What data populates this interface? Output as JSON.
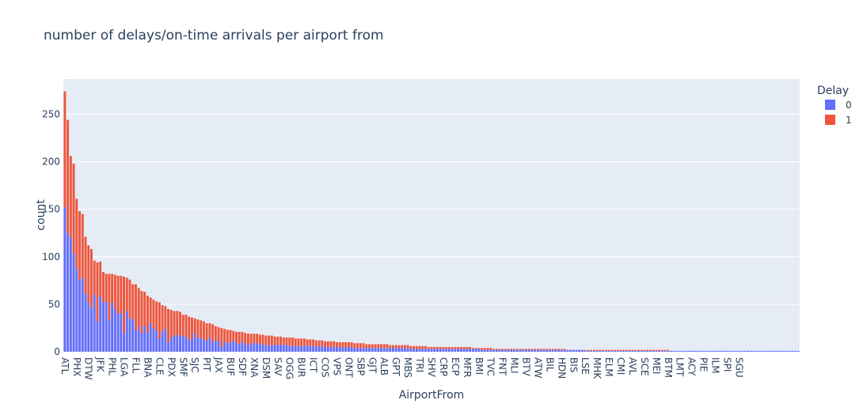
{
  "chart_data": {
    "type": "bar",
    "barmode": "stack",
    "title": "number of delays/on-time arrivals per airport from",
    "xlabel": "AirportFrom",
    "ylabel": "count",
    "ylim": [
      0,
      287
    ],
    "yticks": [
      0,
      50,
      100,
      150,
      200,
      250
    ],
    "grid": true,
    "legend_title": "Delay",
    "legend_position": "top-right",
    "tick_labels": [
      "ATL",
      "PHX",
      "DTW",
      "JFK",
      "PHL",
      "LGA",
      "FLL",
      "BNA",
      "CLE",
      "PDX",
      "SMF",
      "SJC",
      "PIT",
      "JAX",
      "BUF",
      "SDF",
      "XNA",
      "DSM",
      "SAV",
      "OGG",
      "BUR",
      "ICT",
      "COS",
      "VPS",
      "ONT",
      "SBP",
      "GJT",
      "ALB",
      "GPT",
      "MBS",
      "TRI",
      "SHV",
      "CRP",
      "ECP",
      "MFR",
      "BMI",
      "TVC",
      "FNT",
      "MLI",
      "BTV",
      "ATW",
      "BIL",
      "HDN",
      "BIS",
      "LSE",
      "MHK",
      "ELM",
      "CMI",
      "AVL",
      "SCE",
      "MEI",
      "BTM",
      "LMT",
      "ACY",
      "PIE",
      "ILM",
      "SPI",
      "SGU"
    ],
    "series": [
      {
        "name": "0",
        "color": "#636efa",
        "values": [
          152,
          125,
          120,
          103,
          88,
          75,
          78,
          61,
          52,
          46,
          60,
          32,
          58,
          53,
          52,
          33,
          52,
          45,
          40,
          41,
          20,
          43,
          35,
          34,
          22,
          27,
          20,
          27,
          20,
          30,
          25,
          22,
          14,
          21,
          24,
          10,
          15,
          17,
          18,
          16,
          17,
          16,
          12,
          14,
          20,
          15,
          14,
          13,
          12,
          15,
          10,
          12,
          12,
          5,
          10,
          9,
          10,
          12,
          9,
          8,
          11,
          8,
          7,
          9,
          9,
          9,
          8,
          8,
          7,
          6,
          8,
          7,
          7,
          8,
          7,
          7,
          6,
          6,
          7,
          5,
          6,
          6,
          7,
          6,
          6,
          5,
          6,
          6,
          5,
          5,
          5,
          5,
          5,
          5,
          5,
          4,
          5,
          5,
          4,
          4,
          4,
          4,
          4,
          4,
          4,
          4,
          4,
          4,
          4,
          4,
          4,
          4,
          4,
          4,
          4,
          4,
          4,
          3,
          3,
          3,
          3,
          3,
          3,
          3,
          3,
          3,
          3,
          3,
          3,
          3,
          3,
          3,
          3,
          3,
          3,
          3,
          3,
          3,
          3,
          3,
          3,
          2,
          2,
          2,
          2,
          2,
          2,
          2,
          2,
          2,
          2,
          2,
          2,
          2,
          2,
          2,
          2,
          2,
          2,
          2,
          2,
          2,
          2,
          2,
          2,
          2,
          2,
          2,
          2,
          2,
          2,
          2,
          2,
          2,
          2,
          2,
          1,
          1,
          1,
          1,
          1,
          1,
          1,
          1,
          1,
          1,
          1,
          1,
          1,
          1,
          1,
          1,
          1,
          1,
          1,
          1,
          1,
          1,
          1,
          1,
          1,
          1,
          1,
          1,
          1,
          1,
          1,
          1,
          1,
          1,
          1,
          1,
          1,
          1,
          1,
          1,
          1,
          1,
          1,
          1,
          1,
          1,
          1,
          1,
          1,
          1,
          1,
          1,
          1,
          1,
          1,
          1,
          1,
          1,
          1,
          1,
          1,
          1,
          1,
          1,
          1,
          1,
          1,
          1,
          1,
          1,
          1,
          1,
          1
        ]
      },
      {
        "name": "1",
        "color": "#ef553b",
        "values": [
          122,
          119,
          86,
          95,
          73,
          73,
          67,
          60,
          60,
          62,
          36,
          62,
          37,
          31,
          30,
          49,
          30,
          36,
          40,
          39,
          59,
          35,
          41,
          37,
          49,
          40,
          44,
          36,
          39,
          27,
          30,
          31,
          38,
          28,
          24,
          35,
          29,
          26,
          25,
          26,
          22,
          23,
          25,
          22,
          15,
          19,
          19,
          19,
          18,
          15,
          19,
          15,
          14,
          20,
          14,
          14,
          13,
          10,
          12,
          13,
          10,
          12,
          12,
          10,
          10,
          10,
          10,
          10,
          10,
          11,
          9,
          9,
          9,
          8,
          8,
          8,
          9,
          9,
          7,
          9,
          8,
          8,
          6,
          7,
          7,
          7,
          6,
          6,
          6,
          6,
          6,
          6,
          5,
          5,
          5,
          6,
          5,
          5,
          5,
          5,
          5,
          5,
          4,
          4,
          4,
          4,
          4,
          4,
          4,
          4,
          3,
          3,
          3,
          3,
          3,
          3,
          3,
          3,
          3,
          3,
          3,
          3,
          3,
          2,
          2,
          2,
          2,
          2,
          2,
          2,
          2,
          2,
          2,
          2,
          2,
          2,
          2,
          2,
          1,
          1,
          1,
          2,
          2,
          2,
          2,
          1,
          1,
          1,
          1,
          1,
          1,
          1,
          1,
          1,
          1,
          1,
          1,
          1,
          1,
          1,
          1,
          1,
          1,
          1,
          1,
          1,
          1,
          1,
          1,
          1,
          0,
          0,
          0,
          0,
          0,
          0,
          1,
          1,
          1,
          1,
          1,
          1,
          1,
          1,
          1,
          1,
          1,
          1,
          1,
          1,
          1,
          1,
          1,
          1,
          1,
          1,
          1,
          1,
          1,
          1,
          1,
          1,
          1,
          1,
          1,
          0,
          0,
          0,
          0,
          0,
          0,
          0,
          0,
          0,
          0,
          0,
          0,
          0,
          0,
          0,
          0,
          0,
          0,
          0,
          0,
          0,
          0,
          0,
          0,
          0,
          0,
          0,
          0,
          0,
          0,
          0,
          0,
          0,
          0,
          0,
          0,
          0,
          0,
          0,
          0,
          0,
          0
        ]
      }
    ]
  }
}
